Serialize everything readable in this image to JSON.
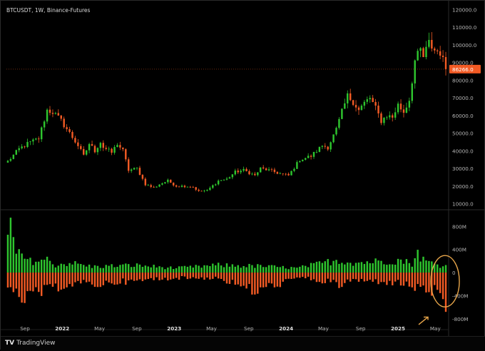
{
  "header": {
    "title": "BTCUSDT, 1W, Binance-Futures"
  },
  "footer": {
    "brand": "TradingView",
    "brand_icon": "tradingview-logo-icon"
  },
  "colors": {
    "up": "#2ec52e",
    "down": "#f15a24",
    "annotation": "#e8a64b",
    "price_label_bg": "#f15a24"
  },
  "chart_data": [
    {
      "type": "candlestick",
      "title": "BTCUSDT, 1W, Binance-Futures",
      "y_ticks": [
        "120000.0",
        "110000.0",
        "100000.0",
        "90000.0",
        "80000.0",
        "70000.0",
        "60000.0",
        "50000.0",
        "40000.0",
        "30000.0",
        "20000.0",
        "10000.0"
      ],
      "ylim": [
        7000,
        121000
      ],
      "last_price_label": "86266.0",
      "last_price": 86266,
      "x_ticks": [
        "Sep",
        "2022",
        "May",
        "Sep",
        "2023",
        "May",
        "Sep",
        "2024",
        "May",
        "Sep",
        "2025",
        "May"
      ],
      "anchors": [
        [
          0,
          34000
        ],
        [
          4,
          41000
        ],
        [
          7,
          44000
        ],
        [
          11,
          47000
        ],
        [
          14,
          63000
        ],
        [
          16,
          62000
        ],
        [
          19,
          57000
        ],
        [
          22,
          50000
        ],
        [
          25,
          43000
        ],
        [
          27,
          37000
        ],
        [
          29,
          44000
        ],
        [
          31,
          40000
        ],
        [
          33,
          45000
        ],
        [
          34,
          42000
        ],
        [
          37,
          39000
        ],
        [
          39,
          44000
        ],
        [
          41,
          40000
        ],
        [
          43,
          29000
        ],
        [
          46,
          30000
        ],
        [
          49,
          21000
        ],
        [
          52,
          19000
        ],
        [
          54,
          21000
        ],
        [
          57,
          23000
        ],
        [
          60,
          20000
        ],
        [
          63,
          20000
        ],
        [
          66,
          19500
        ],
        [
          68,
          17000
        ],
        [
          71,
          17500
        ],
        [
          75,
          23000
        ],
        [
          78,
          24000
        ],
        [
          81,
          28000
        ],
        [
          84,
          29000
        ],
        [
          88,
          26000
        ],
        [
          90,
          30000
        ],
        [
          93,
          29000
        ],
        [
          97,
          27000
        ],
        [
          100,
          26000
        ],
        [
          104,
          35000
        ],
        [
          108,
          37000
        ],
        [
          112,
          43000
        ],
        [
          114,
          42000
        ],
        [
          117,
          52000
        ],
        [
          119,
          62000
        ],
        [
          121,
          71000
        ],
        [
          123,
          68000
        ],
        [
          125,
          63000
        ],
        [
          127,
          67000
        ],
        [
          129,
          70000
        ],
        [
          131,
          64000
        ],
        [
          133,
          57000
        ],
        [
          135,
          60000
        ],
        [
          137,
          59000
        ],
        [
          139,
          66000
        ],
        [
          141,
          62000
        ],
        [
          143,
          69000
        ],
        [
          145,
          91000
        ],
        [
          147,
          97000
        ],
        [
          148,
          93000
        ],
        [
          150,
          101000
        ],
        [
          152,
          97000
        ],
        [
          154,
          96000
        ],
        [
          155,
          91000
        ],
        [
          156,
          86266
        ]
      ],
      "volume_delta": {
        "type": "bar",
        "y_ticks": [
          "800M",
          "400M",
          "0",
          "-400M",
          "-800M"
        ],
        "ylim": [
          -950,
          1050
        ],
        "positive_peaks": [
          [
            0,
            650
          ],
          [
            1,
            950
          ],
          [
            3,
            400
          ],
          [
            5,
            320
          ],
          [
            8,
            230
          ],
          [
            14,
            260
          ],
          [
            17,
            150
          ],
          [
            22,
            200
          ],
          [
            30,
            120
          ],
          [
            45,
            150
          ],
          [
            60,
            90
          ],
          [
            75,
            150
          ],
          [
            90,
            130
          ],
          [
            103,
            90
          ],
          [
            110,
            170
          ],
          [
            117,
            250
          ],
          [
            124,
            200
          ],
          [
            132,
            230
          ],
          [
            140,
            250
          ],
          [
            144,
            180
          ],
          [
            146,
            400
          ],
          [
            148,
            260
          ],
          [
            150,
            210
          ],
          [
            155,
            130
          ]
        ],
        "negative_peaks": [
          [
            0,
            -350
          ],
          [
            2,
            -480
          ],
          [
            5,
            -500
          ],
          [
            7,
            -560
          ],
          [
            9,
            -420
          ],
          [
            14,
            -380
          ],
          [
            17,
            -300
          ],
          [
            20,
            -260
          ],
          [
            25,
            -220
          ],
          [
            33,
            -240
          ],
          [
            40,
            -180
          ],
          [
            45,
            -190
          ],
          [
            50,
            -140
          ],
          [
            60,
            -110
          ],
          [
            75,
            -110
          ],
          [
            88,
            -380
          ],
          [
            104,
            -100
          ],
          [
            115,
            -200
          ],
          [
            118,
            -260
          ],
          [
            122,
            -160
          ],
          [
            132,
            -180
          ],
          [
            140,
            -220
          ],
          [
            145,
            -300
          ],
          [
            148,
            -340
          ],
          [
            152,
            -380
          ],
          [
            155,
            -680
          ]
        ],
        "annotation": "circled final bar"
      }
    }
  ]
}
